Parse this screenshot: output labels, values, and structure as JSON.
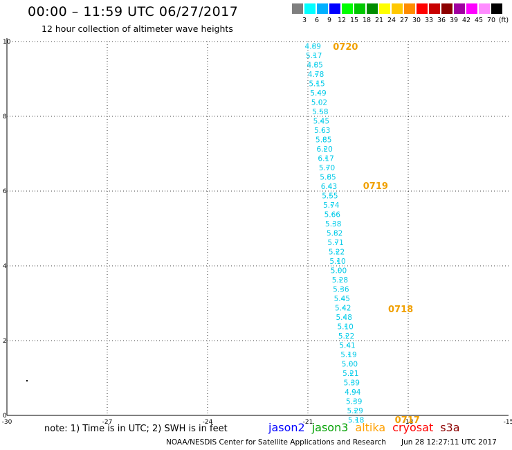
{
  "header": {
    "title": "00:00 – 11:59 UTC 06/27/2017",
    "subtitle": "12 hour collection of altimeter wave heights"
  },
  "color_scale": {
    "unit": "(ft)",
    "bins": [
      {
        "label": "3",
        "color": "#7f7f7f"
      },
      {
        "label": "6",
        "color": "#00ffff"
      },
      {
        "label": "9",
        "color": "#00b0ff"
      },
      {
        "label": "12",
        "color": "#0000ff"
      },
      {
        "label": "15",
        "color": "#00ff00"
      },
      {
        "label": "18",
        "color": "#00c800"
      },
      {
        "label": "21",
        "color": "#008c00"
      },
      {
        "label": "24",
        "color": "#ffff00"
      },
      {
        "label": "27",
        "color": "#ffc800"
      },
      {
        "label": "30",
        "color": "#ff8c00"
      },
      {
        "label": "33",
        "color": "#ff0000"
      },
      {
        "label": "36",
        "color": "#c80000"
      },
      {
        "label": "39",
        "color": "#8c0000"
      },
      {
        "label": "42",
        "color": "#a000a0"
      },
      {
        "label": "45",
        "color": "#ff00ff"
      },
      {
        "label": "70",
        "color": "#ff8cff"
      },
      {
        "label": "(ft)",
        "color": "#000000"
      }
    ]
  },
  "chart_data": {
    "type": "scatter",
    "xlim": [
      -30,
      -15
    ],
    "ylim": [
      0,
      10
    ],
    "x_ticks": [
      "-30",
      "-27",
      "-24",
      "-21",
      "-18",
      "-15"
    ],
    "y_ticks": [
      "0",
      "2",
      "4",
      "6",
      "8",
      "10"
    ],
    "grid": true,
    "point_color": "#00e5ff",
    "label_color": "#00c8e6",
    "time_label_color": "#f0a000",
    "points": [
      {
        "x": -20.85,
        "y": 9.88,
        "label": "4.89"
      },
      {
        "x": -20.82,
        "y": 9.63,
        "label": "5.17"
      },
      {
        "x": -20.79,
        "y": 9.38,
        "label": "4.85"
      },
      {
        "x": -20.76,
        "y": 9.13,
        "label": "4.78"
      },
      {
        "x": -20.73,
        "y": 8.88,
        "label": "5.15"
      },
      {
        "x": -20.69,
        "y": 8.63,
        "label": "5.49"
      },
      {
        "x": -20.66,
        "y": 8.38,
        "label": "5.02"
      },
      {
        "x": -20.63,
        "y": 8.13,
        "label": "5.58"
      },
      {
        "x": -20.6,
        "y": 7.88,
        "label": "5.45"
      },
      {
        "x": -20.57,
        "y": 7.63,
        "label": "5.63"
      },
      {
        "x": -20.53,
        "y": 7.38,
        "label": "5.85"
      },
      {
        "x": -20.5,
        "y": 7.13,
        "label": "6.20"
      },
      {
        "x": -20.46,
        "y": 6.88,
        "label": "6.17"
      },
      {
        "x": -20.43,
        "y": 6.63,
        "label": "5.70"
      },
      {
        "x": -20.4,
        "y": 6.38,
        "label": "5.85"
      },
      {
        "x": -20.37,
        "y": 6.13,
        "label": "6.43"
      },
      {
        "x": -20.34,
        "y": 5.88,
        "label": "5.55"
      },
      {
        "x": -20.3,
        "y": 5.63,
        "label": "5.74"
      },
      {
        "x": -20.27,
        "y": 5.38,
        "label": "5.66"
      },
      {
        "x": -20.24,
        "y": 5.13,
        "label": "5.38"
      },
      {
        "x": -20.2,
        "y": 4.88,
        "label": "5.82"
      },
      {
        "x": -20.17,
        "y": 4.63,
        "label": "5.71"
      },
      {
        "x": -20.14,
        "y": 4.38,
        "label": "5.22"
      },
      {
        "x": -20.11,
        "y": 4.13,
        "label": "5.10"
      },
      {
        "x": -20.08,
        "y": 3.88,
        "label": "5.00"
      },
      {
        "x": -20.04,
        "y": 3.63,
        "label": "5.28"
      },
      {
        "x": -20.01,
        "y": 3.38,
        "label": "5.36"
      },
      {
        "x": -19.98,
        "y": 3.13,
        "label": "5.45"
      },
      {
        "x": -19.95,
        "y": 2.88,
        "label": "5.42"
      },
      {
        "x": -19.92,
        "y": 2.63,
        "label": "5.48"
      },
      {
        "x": -19.88,
        "y": 2.38,
        "label": "5.10"
      },
      {
        "x": -19.85,
        "y": 2.13,
        "label": "5.22"
      },
      {
        "x": -19.82,
        "y": 1.88,
        "label": "5.41"
      },
      {
        "x": -19.78,
        "y": 1.63,
        "label": "5.19"
      },
      {
        "x": -19.75,
        "y": 1.38,
        "label": "5.00"
      },
      {
        "x": -19.72,
        "y": 1.13,
        "label": "5.21"
      },
      {
        "x": -19.69,
        "y": 0.88,
        "label": "5.39"
      },
      {
        "x": -19.66,
        "y": 0.63,
        "label": "4.94"
      },
      {
        "x": -19.62,
        "y": 0.38,
        "label": "5.39"
      },
      {
        "x": -19.59,
        "y": 0.13,
        "label": "5.29"
      },
      {
        "x": -19.56,
        "y": -0.12,
        "label": "5.18"
      }
    ],
    "time_labels": [
      {
        "x": -20.25,
        "y": 9.87,
        "label": "0720"
      },
      {
        "x": -19.35,
        "y": 6.15,
        "label": "0719"
      },
      {
        "x": -18.6,
        "y": 2.85,
        "label": "0718"
      },
      {
        "x": -18.4,
        "y": -0.11,
        "label": "0717"
      }
    ]
  },
  "footer": {
    "note": "note:  1) Time is in UTC;  2) SWH is in feet",
    "satellites": [
      {
        "name": "jason2",
        "color": "#0000ff"
      },
      {
        "name": "jason3",
        "color": "#00a000"
      },
      {
        "name": "altika",
        "color": "#ffa000"
      },
      {
        "name": "cryosat",
        "color": "#ff0000"
      },
      {
        "name": "s3a",
        "color": "#8c0000"
      }
    ],
    "credit": "NOAA/NESDIS Center for Satellite Applications and Research",
    "timestamp": "Jun 28 12:27:11 UTC 2017"
  }
}
